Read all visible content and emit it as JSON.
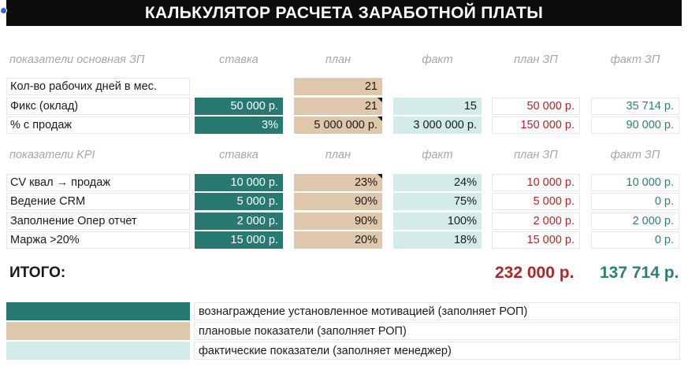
{
  "title": "КАЛЬКУЛЯТОР РАСЧЕТА ЗАРАБОТНОЙ ПЛАТЫ",
  "colors": {
    "teal": "#287972",
    "tan": "#dfc7ab",
    "light": "#d3ecea",
    "red": "#b52424",
    "green": "#2e7d76"
  },
  "headers": {
    "main_section": "показатели основная ЗП",
    "kpi_section": "показатели KPI",
    "rate": "ставка",
    "plan": "план",
    "fact": "факт",
    "plan_salary": "план ЗП",
    "fact_salary": "факт ЗП"
  },
  "main_rows": [
    {
      "label": "Кол-во рабочих дней в мес.",
      "rate": "",
      "plan": "21",
      "fact": "",
      "plan_salary": "",
      "fact_salary": ""
    },
    {
      "label": "Фикс (оклад)",
      "rate": "50 000 р.",
      "plan": "21",
      "fact": "15",
      "plan_salary": "50 000 р.",
      "fact_salary": "35 714 р."
    },
    {
      "label": "% с продаж",
      "rate": "3%",
      "plan": "5 000 000 р.",
      "fact": "3 000 000 р.",
      "plan_salary": "150 000 р.",
      "fact_salary": "90 000 р."
    }
  ],
  "kpi_rows": [
    {
      "label": "CV квал → продаж",
      "rate": "10 000 р.",
      "plan": "23%",
      "fact": "24%",
      "plan_salary": "10 000 р.",
      "fact_salary": "10 000 р."
    },
    {
      "label": "Ведение CRM",
      "rate": "5 000 р.",
      "plan": "90%",
      "fact": "75%",
      "plan_salary": "5 000 р.",
      "fact_salary": "0 р."
    },
    {
      "label": "Заполнение Опер отчет",
      "rate": "2 000 р.",
      "plan": "90%",
      "fact": "100%",
      "plan_salary": "2 000 р.",
      "fact_salary": "2 000 р."
    },
    {
      "label": "Маржа >20%",
      "rate": "15 000 р.",
      "plan": "20%",
      "fact": "18%",
      "plan_salary": "15 000 р.",
      "fact_salary": "0 р."
    }
  ],
  "totals": {
    "label": "ИТОГО:",
    "plan": "232 000 р.",
    "fact": "137 714 р."
  },
  "legend": [
    "вознаграждение установленное мотивацией (заполняет РОП)",
    "плановые показатели (заполняет РОП)",
    "фактические показатели (заполняет менеджер)"
  ]
}
